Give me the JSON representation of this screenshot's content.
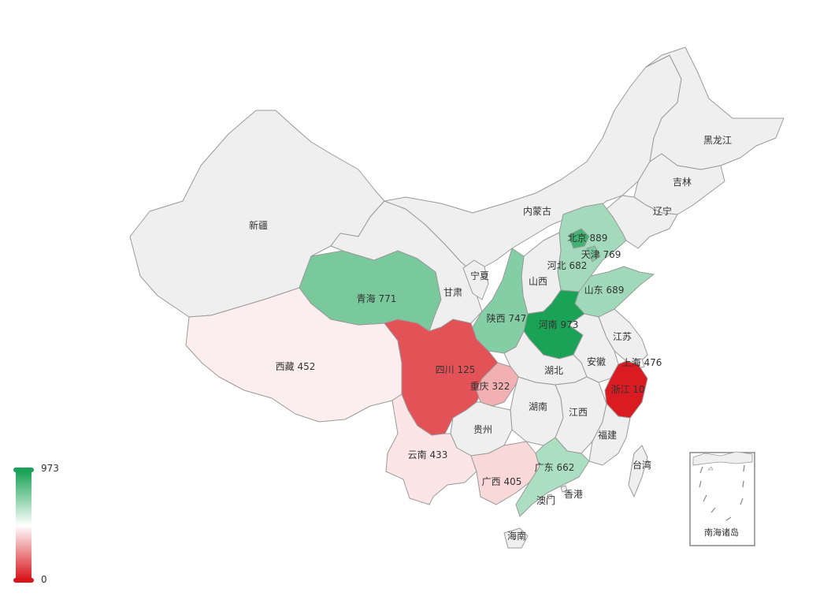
{
  "map": {
    "no_data_color": "#efefef",
    "border_color": "#9a9a9a",
    "regions": [
      {
        "id": "xinjiang",
        "name": "新疆",
        "value": null
      },
      {
        "id": "xizang",
        "name": "西藏",
        "value": 452
      },
      {
        "id": "qinghai",
        "name": "青海",
        "value": 771
      },
      {
        "id": "gansu",
        "name": "甘肃",
        "value": null
      },
      {
        "id": "neimenggu",
        "name": "内蒙古",
        "value": null
      },
      {
        "id": "heilongjiang",
        "name": "黑龙江",
        "value": null
      },
      {
        "id": "jilin",
        "name": "吉林",
        "value": null
      },
      {
        "id": "liaoning",
        "name": "辽宁",
        "value": null
      },
      {
        "id": "beijing",
        "name": "北京",
        "value": 889
      },
      {
        "id": "tianjin",
        "name": "天津",
        "value": 769
      },
      {
        "id": "hebei",
        "name": "河北",
        "value": 682
      },
      {
        "id": "shandong",
        "name": "山东",
        "value": 689
      },
      {
        "id": "ningxia",
        "name": "宁夏",
        "value": null
      },
      {
        "id": "shanxi",
        "name": "山西",
        "value": null
      },
      {
        "id": "shaanxi",
        "name": "陕西",
        "value": 747
      },
      {
        "id": "henan",
        "name": "河南",
        "value": 973
      },
      {
        "id": "jiangsu",
        "name": "江苏",
        "value": null
      },
      {
        "id": "shanghai",
        "name": "上海",
        "value": 476
      },
      {
        "id": "anhui",
        "name": "安徽",
        "value": null
      },
      {
        "id": "hubei",
        "name": "湖北",
        "value": null
      },
      {
        "id": "sichuan",
        "name": "四川",
        "value": 125
      },
      {
        "id": "chongqing",
        "name": "重庆",
        "value": 322
      },
      {
        "id": "zhejiang",
        "name": "浙江",
        "value": 10
      },
      {
        "id": "hunan",
        "name": "湖南",
        "value": null
      },
      {
        "id": "jiangxi",
        "name": "江西",
        "value": null
      },
      {
        "id": "guizhou",
        "name": "贵州",
        "value": null
      },
      {
        "id": "fujian",
        "name": "福建",
        "value": null
      },
      {
        "id": "yunnan",
        "name": "云南",
        "value": 433
      },
      {
        "id": "guangxi",
        "name": "广西",
        "value": 405
      },
      {
        "id": "guangdong",
        "name": "广东",
        "value": 662
      },
      {
        "id": "taiwan",
        "name": "台湾",
        "value": null
      },
      {
        "id": "hongkong",
        "name": "香港",
        "value": null
      },
      {
        "id": "macau",
        "name": "澳门",
        "value": null
      },
      {
        "id": "hainan",
        "name": "海南",
        "value": null
      }
    ],
    "inset_label": "南海诸岛"
  },
  "visual_map": {
    "min": 0,
    "max": 973,
    "min_label": "0",
    "max_label": "973",
    "colors": [
      "#d9161c",
      "#ffffff",
      "#1aa356"
    ]
  }
}
